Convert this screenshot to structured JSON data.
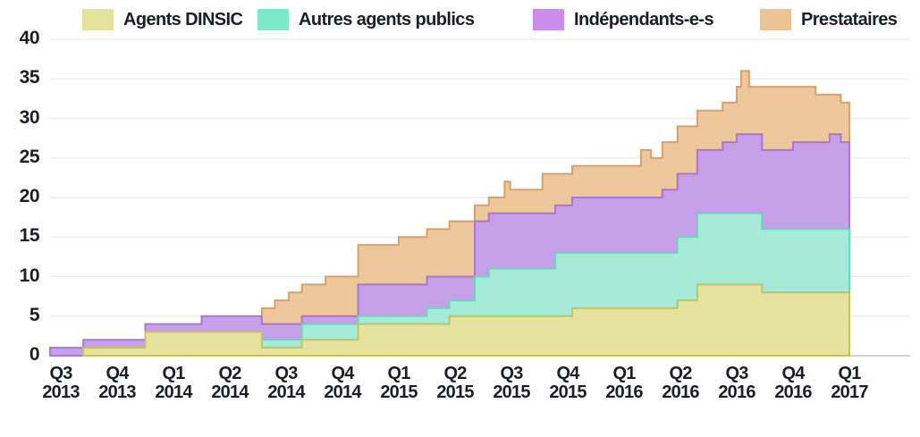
{
  "chart_data": {
    "type": "area",
    "variant": "stacked-step",
    "title": "",
    "xlabel": "",
    "ylabel": "",
    "ylim": [
      0,
      40
    ],
    "y_ticks": [
      0,
      5,
      10,
      15,
      20,
      25,
      30,
      35,
      40
    ],
    "grid": true,
    "legend_position": "top",
    "categories": [
      {
        "q": "Q3",
        "year": "2013"
      },
      {
        "q": "Q4",
        "year": "2013"
      },
      {
        "q": "Q1",
        "year": "2014"
      },
      {
        "q": "Q2",
        "year": "2014"
      },
      {
        "q": "Q3",
        "year": "2014"
      },
      {
        "q": "Q4",
        "year": "2014"
      },
      {
        "q": "Q1",
        "year": "2015"
      },
      {
        "q": "Q2",
        "year": "2015"
      },
      {
        "q": "Q3",
        "year": "2015"
      },
      {
        "q": "Q4",
        "year": "2015"
      },
      {
        "q": "Q1",
        "year": "2016"
      },
      {
        "q": "Q2",
        "year": "2016"
      },
      {
        "q": "Q3",
        "year": "2016"
      },
      {
        "q": "Q4",
        "year": "2016"
      },
      {
        "q": "Q1",
        "year": "2017"
      }
    ],
    "series": [
      {
        "name": "Agents DINSIC",
        "fill": "#e6e3a0",
        "stroke": "#c9c25f",
        "legend_fill": "#e4e29c"
      },
      {
        "name": "Autres agents publics",
        "fill": "#a5ebd7",
        "stroke": "#66dbb9",
        "legend_fill": "#7ee8c9"
      },
      {
        "name": "Indépendants-e-s",
        "fill": "#c6a0e8",
        "stroke": "#aa76d7",
        "legend_fill": "#ca8de9"
      },
      {
        "name": "Prestataires",
        "fill": "#edc79e",
        "stroke": "#daa067",
        "legend_fill": "#ecc392"
      }
    ],
    "steps_note": "t = quarters after Q3 2013; values = [Agents DINSIC, Autres agents publics, Indépendants-e-s, Prestataires] counts estimated from gridlines",
    "steps": [
      {
        "t": 0.0,
        "values": [
          0,
          0,
          1,
          0
        ]
      },
      {
        "t": 0.4,
        "values": [
          1,
          0,
          1,
          0
        ]
      },
      {
        "t": 1.5,
        "values": [
          3,
          0,
          1,
          0
        ]
      },
      {
        "t": 2.5,
        "values": [
          3,
          0,
          2,
          0
        ]
      },
      {
        "t": 3.57,
        "values": [
          1,
          1,
          2,
          2
        ]
      },
      {
        "t": 3.8,
        "values": [
          1,
          1,
          2,
          3
        ]
      },
      {
        "t": 4.05,
        "values": [
          1,
          1,
          2,
          4
        ]
      },
      {
        "t": 4.28,
        "values": [
          2,
          2,
          1,
          4
        ]
      },
      {
        "t": 4.7,
        "values": [
          2,
          2,
          1,
          5
        ]
      },
      {
        "t": 5.28,
        "values": [
          4,
          1,
          4,
          5
        ]
      },
      {
        "t": 6.0,
        "values": [
          4,
          1,
          4,
          6
        ]
      },
      {
        "t": 6.5,
        "values": [
          4,
          2,
          4,
          6
        ]
      },
      {
        "t": 6.9,
        "values": [
          5,
          2,
          3,
          7
        ]
      },
      {
        "t": 7.35,
        "values": [
          5,
          5,
          7,
          2
        ]
      },
      {
        "t": 7.6,
        "values": [
          5,
          6,
          7,
          2
        ]
      },
      {
        "t": 7.88,
        "values": [
          5,
          6,
          7,
          4
        ]
      },
      {
        "t": 7.98,
        "values": [
          5,
          6,
          7,
          3
        ]
      },
      {
        "t": 8.55,
        "values": [
          5,
          6,
          7,
          5
        ]
      },
      {
        "t": 8.78,
        "values": [
          5,
          8,
          6,
          4
        ]
      },
      {
        "t": 9.08,
        "values": [
          6,
          7,
          7,
          4
        ]
      },
      {
        "t": 10.3,
        "values": [
          6,
          7,
          7,
          6
        ]
      },
      {
        "t": 10.48,
        "values": [
          6,
          7,
          7,
          5
        ]
      },
      {
        "t": 10.68,
        "values": [
          6,
          7,
          8,
          6
        ]
      },
      {
        "t": 10.95,
        "values": [
          7,
          8,
          8,
          6
        ]
      },
      {
        "t": 11.3,
        "values": [
          9,
          9,
          8,
          5
        ]
      },
      {
        "t": 11.75,
        "values": [
          9,
          9,
          9,
          5
        ]
      },
      {
        "t": 12.0,
        "values": [
          9,
          9,
          10,
          6
        ]
      },
      {
        "t": 12.08,
        "values": [
          9,
          9,
          10,
          8
        ]
      },
      {
        "t": 12.22,
        "values": [
          9,
          9,
          10,
          6
        ]
      },
      {
        "t": 12.45,
        "values": [
          8,
          8,
          10,
          8
        ]
      },
      {
        "t": 13.0,
        "values": [
          8,
          8,
          11,
          7
        ]
      },
      {
        "t": 13.4,
        "values": [
          8,
          8,
          11,
          6
        ]
      },
      {
        "t": 13.65,
        "values": [
          8,
          8,
          12,
          5
        ]
      },
      {
        "t": 13.85,
        "values": [
          8,
          8,
          11,
          5
        ]
      },
      {
        "t": 14.0,
        "values": [
          8,
          8,
          11,
          5
        ]
      }
    ]
  },
  "colors": {
    "background": "#ffffff",
    "gridline": "#ececec",
    "axis_line": "#d2d2d2",
    "text": "#1d1d27"
  }
}
